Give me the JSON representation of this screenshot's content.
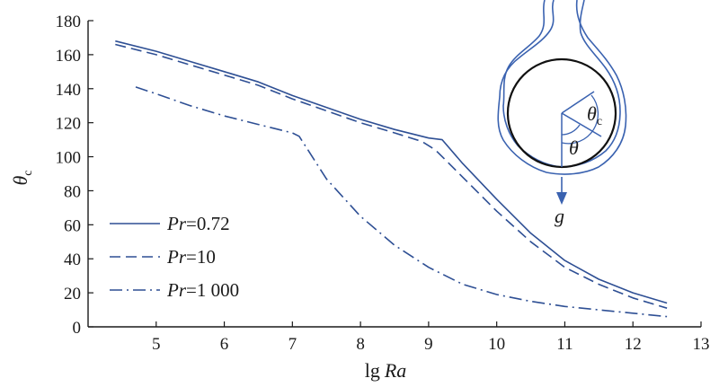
{
  "chart_data": {
    "type": "line",
    "xlabel": {
      "prefix": "lg",
      "var": "Ra"
    },
    "ylabel": {
      "symbol": "θ",
      "sub": "c"
    },
    "xlim": [
      4,
      13
    ],
    "ylim": [
      0,
      180
    ],
    "xticks": [
      5,
      6,
      7,
      8,
      9,
      10,
      11,
      12,
      13
    ],
    "yticks": [
      0,
      20,
      40,
      60,
      80,
      100,
      120,
      140,
      160,
      180
    ],
    "grid": false,
    "legend_position": "bottom-left",
    "series": [
      {
        "name": "Pr=0.72",
        "name_parts": {
          "var": "Pr",
          "value": "=0.72"
        },
        "style": "solid",
        "color": "#2e4f94",
        "x": [
          4.4,
          5.0,
          5.5,
          6.0,
          6.5,
          7.0,
          7.5,
          8.0,
          8.5,
          9.0,
          9.2,
          9.5,
          10.0,
          10.5,
          11.0,
          11.5,
          12.0,
          12.5
        ],
        "y": [
          168,
          162,
          156,
          150,
          144,
          136,
          129,
          122,
          116,
          111,
          110,
          96,
          75,
          55,
          39,
          28,
          20,
          14
        ]
      },
      {
        "name": "Pr=10",
        "name_parts": {
          "var": "Pr",
          "value": "=10"
        },
        "style": "dashed",
        "color": "#2e4f94",
        "x": [
          4.4,
          5.0,
          5.5,
          6.0,
          6.5,
          7.0,
          7.5,
          8.0,
          8.5,
          8.9,
          9.1,
          9.5,
          10.0,
          10.5,
          11.0,
          11.5,
          12.0,
          12.5
        ],
        "y": [
          166,
          160,
          154,
          148,
          142,
          134,
          127,
          120,
          114,
          109,
          104,
          88,
          68,
          50,
          35,
          25,
          17,
          11
        ]
      },
      {
        "name": "Pr=1 000",
        "name_parts": {
          "var": "Pr",
          "value": "=1 000"
        },
        "style": "dashdot",
        "color": "#2e4f94",
        "x": [
          4.7,
          5.0,
          5.5,
          6.0,
          6.5,
          7.0,
          7.1,
          7.5,
          8.0,
          8.5,
          9.0,
          9.5,
          10.0,
          10.5,
          11.0,
          11.5,
          12.0,
          12.5
        ],
        "y": [
          141,
          137,
          130,
          124,
          119,
          114,
          112,
          87,
          65,
          48,
          35,
          25,
          19,
          15,
          12,
          10,
          8,
          6
        ]
      }
    ],
    "inset": {
      "angle_c_label": {
        "symbol": "θ",
        "sub": "c"
      },
      "angle_label": "θ",
      "gravity_label": "g"
    }
  }
}
